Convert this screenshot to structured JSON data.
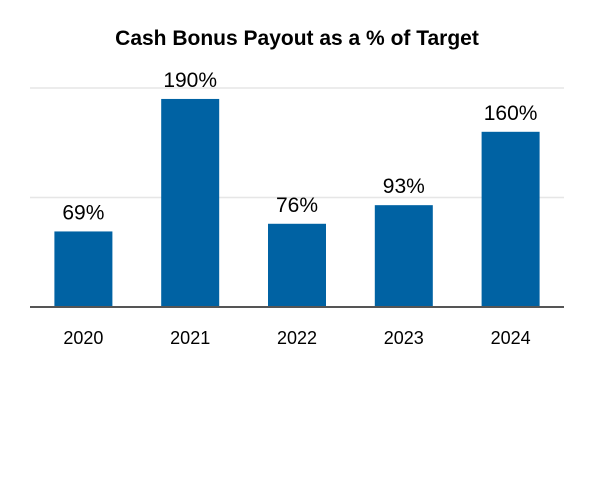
{
  "chart_data": {
    "type": "bar",
    "title": "Cash Bonus Payout as a % of Target",
    "categories": [
      "2020",
      "2021",
      "2022",
      "2023",
      "2024"
    ],
    "values": [
      69,
      190,
      76,
      93,
      160
    ],
    "data_labels": [
      "69%",
      "190%",
      "76%",
      "93%",
      "160%"
    ],
    "unit": "%",
    "xlabel": "",
    "ylabel": "",
    "ylim": [
      0,
      200
    ],
    "gridlines": [
      100,
      200
    ],
    "grid": true,
    "legend": "none",
    "colors": {
      "bar": "#0062A3",
      "grid": "#E6E6E6",
      "baseline": "#555555"
    }
  }
}
